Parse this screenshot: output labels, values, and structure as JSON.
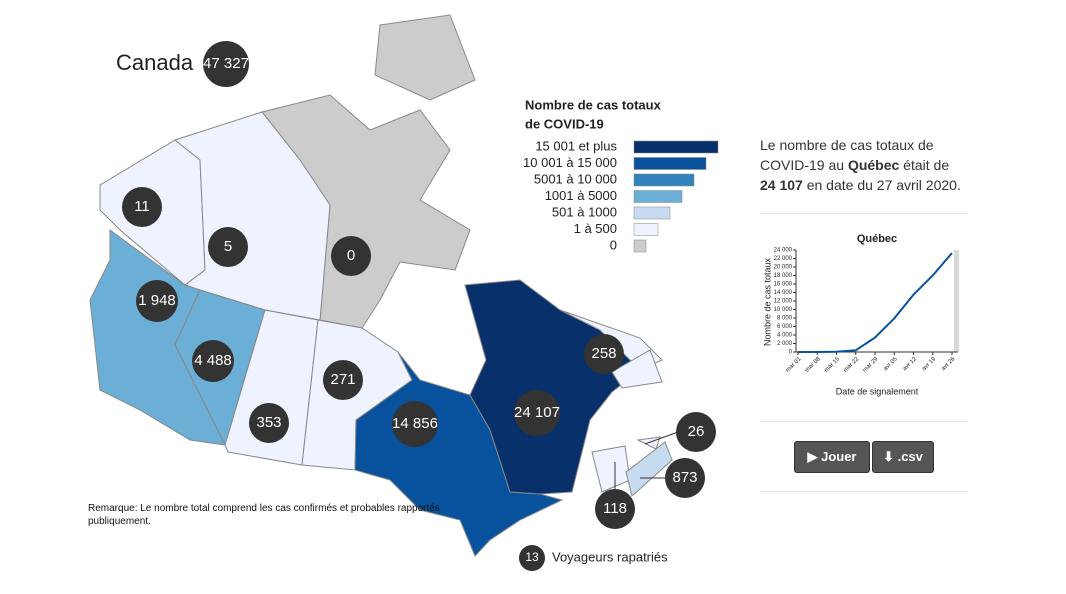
{
  "header": {
    "title": "Canada",
    "total": "47 327"
  },
  "legend": {
    "title": [
      "Nombre de cas totaux",
      "de COVID-19"
    ],
    "items": [
      {
        "label": "15 001 et plus",
        "color": "#08306b"
      },
      {
        "label": "10 001 à 15 000",
        "color": "#08519c"
      },
      {
        "label": "5001 à 10 000",
        "color": "#3182bd"
      },
      {
        "label": "1001 à 5000",
        "color": "#6baed6"
      },
      {
        "label": "501 à 1000",
        "color": "#c6dbef"
      },
      {
        "label": "1 à 500",
        "color": "#eff3ff"
      },
      {
        "label": "0",
        "color": "#cccccc"
      }
    ]
  },
  "regions": [
    "11",
    "5",
    "0",
    "1 948",
    "4 488",
    "353",
    "271",
    "14 856",
    "24 107",
    "258",
    "26",
    "873",
    "118"
  ],
  "repatriated": {
    "count": "13",
    "label": "Voyageurs rapatriés"
  },
  "note": "Remarque: Le nombre total comprend les cas confirmés et probables rapportés publiquement.",
  "summary": {
    "prefix": "Le nombre de cas totaux de COVID-19 au ",
    "province": "Québec",
    "middle": " était de ",
    "count": "24 107",
    "suffix": " en date du 27 avril 2020."
  },
  "trend_chart": {
    "type": "line",
    "title": "Québec",
    "y_label": "Nombre de cas totaux",
    "x_label": "Date de signalement",
    "categories": [
      "mar 01",
      "mar 08",
      "mar 15",
      "mar 22",
      "mar 29",
      "avr 05",
      "avr 12",
      "avr 19",
      "avr 26"
    ],
    "values": [
      0,
      0,
      50,
      400,
      3400,
      7900,
      13500,
      18000,
      23300
    ],
    "color": "#08519c",
    "ylim": [
      0,
      24000
    ],
    "yticks": [
      0,
      {
        "value": 2000,
        "label": "2 000"
      },
      {
        "value": 4000,
        "label": "4 000"
      },
      {
        "value": 6000,
        "label": "6 000"
      },
      {
        "value": 8000,
        "label": "8 000"
      },
      {
        "value": 10000,
        "label": "10 000"
      },
      {
        "value": 12000,
        "label": "12 000"
      },
      {
        "value": 14000,
        "label": "14 000"
      },
      {
        "value": 16000,
        "label": "16 000"
      },
      {
        "value": 18000,
        "label": "18 000"
      },
      {
        "value": 20000,
        "label": "20 000"
      },
      {
        "value": 22000,
        "label": "22 000"
      },
      {
        "value": 24000,
        "label": "24 000"
      }
    ]
  },
  "buttons": [
    "Jouer",
    ".csv"
  ]
}
